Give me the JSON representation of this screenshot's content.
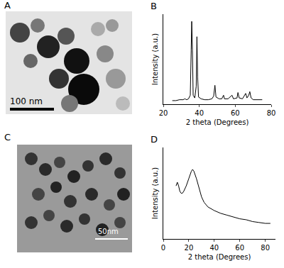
{
  "chart_data": [
    {
      "type": "line",
      "title": "B",
      "xlabel": "2 theta (Degrees)",
      "ylabel": "Intensity (a.u.)",
      "x": [
        25,
        27,
        29,
        31,
        32,
        33,
        34,
        35,
        35.5,
        35.8,
        36.2,
        36.6,
        37.5,
        38.3,
        38.7,
        39.1,
        39.6,
        41,
        43,
        45,
        47,
        48,
        48.7,
        49.3,
        51,
        52.5,
        53.5,
        54,
        56,
        58.2,
        59,
        61,
        61.5,
        62.2,
        64,
        65.8,
        66.5,
        67.5,
        68.1,
        68.8,
        70,
        72,
        74,
        75
      ],
      "values": [
        4,
        4,
        5,
        5,
        6,
        5,
        6,
        10,
        60,
        92,
        60,
        10,
        7,
        20,
        75,
        30,
        8,
        6,
        5,
        5,
        6,
        9,
        21,
        8,
        6,
        6,
        10,
        6,
        6,
        10,
        6,
        7,
        13,
        7,
        6,
        12,
        7,
        10,
        14,
        7,
        5,
        5,
        5,
        5
      ],
      "color": "#000000",
      "xlim": [
        20,
        80
      ],
      "xticks": [
        20,
        40,
        60,
        80
      ],
      "ylim": [
        0,
        100
      ],
      "tick_labels": "x"
    },
    {
      "type": "line",
      "title": "D",
      "xlabel": "2 theta (Degrees)",
      "ylabel": "Intensity (a.u.)",
      "x": [
        10,
        11,
        12,
        13,
        14,
        15,
        16,
        18,
        20,
        22,
        23,
        24,
        26,
        28,
        30,
        32,
        35,
        40,
        45,
        50,
        55,
        60,
        65,
        70,
        75,
        80,
        84
      ],
      "values": [
        58,
        62,
        58,
        52,
        50,
        50,
        52,
        58,
        66,
        74,
        76,
        74,
        66,
        55,
        46,
        40,
        35,
        31,
        28,
        26,
        24,
        22,
        21,
        19,
        18,
        17,
        17
      ],
      "color": "#000000",
      "xlim": [
        0,
        88
      ],
      "xticks": [
        0,
        20,
        40,
        60,
        80
      ],
      "ylim": [
        0,
        100
      ],
      "tick_labels": "x"
    }
  ],
  "images": [
    {
      "title": "A",
      "scale_bar": "100 nm"
    },
    {
      "title": "C",
      "scale_bar": "50nm"
    }
  ]
}
